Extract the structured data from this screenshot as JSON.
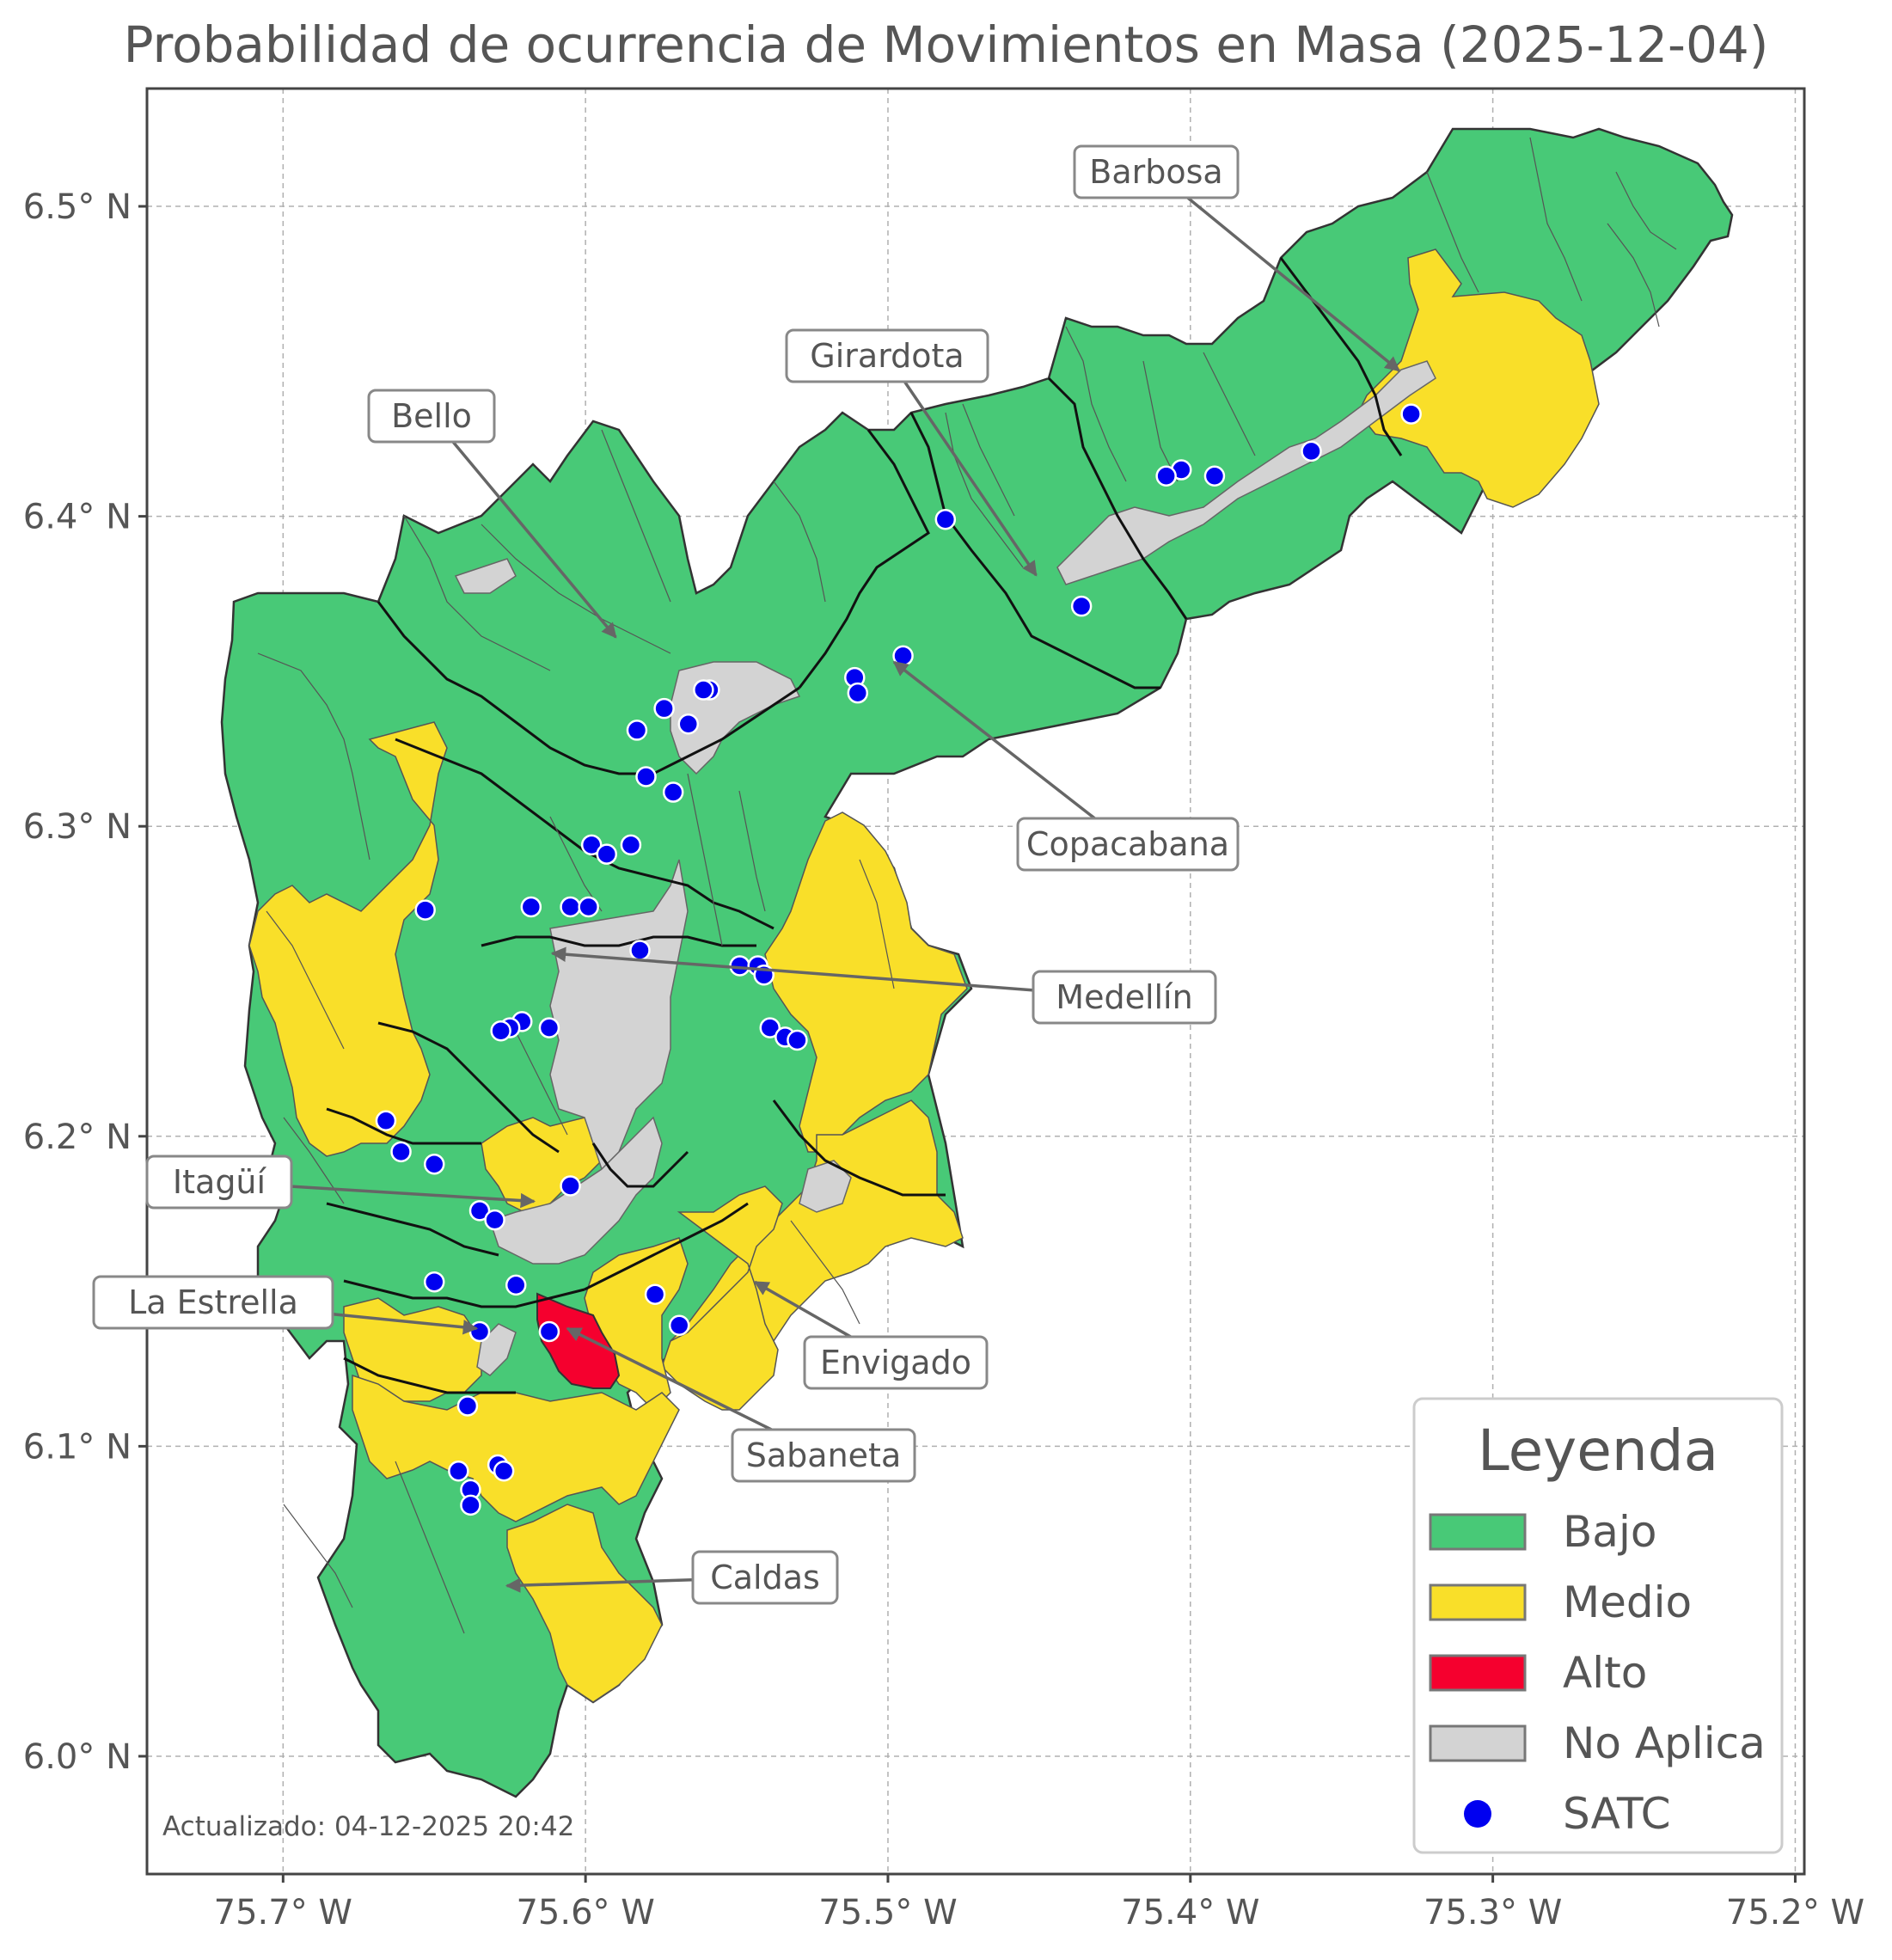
{
  "title": "Probabilidad de ocurrencia de Movimientos en Masa (2025-12-04)",
  "axes": {
    "x_ticks": [
      "75.7° W",
      "75.6° W",
      "75.5° W",
      "75.4° W",
      "75.3° W",
      "75.2° W"
    ],
    "y_ticks": [
      "6.5° N",
      "6.4° N",
      "6.3° N",
      "6.2° N",
      "6.1° N",
      "6.0° N"
    ],
    "x_values": [
      -75.7,
      -75.6,
      -75.5,
      -75.4,
      -75.3,
      -75.2
    ],
    "y_values": [
      6.5,
      6.4,
      6.3,
      6.2,
      6.1,
      6.0
    ],
    "lon_range": [
      -75.745,
      -75.197
    ],
    "lat_range": [
      5.962,
      6.538
    ],
    "grid": true
  },
  "municipalities": [
    {
      "name": "Barbosa",
      "lon": -75.331,
      "lat": 6.447
    },
    {
      "name": "Girardota",
      "lon": -75.451,
      "lat": 6.381
    },
    {
      "name": "Bello",
      "lon": -75.59,
      "lat": 6.361
    },
    {
      "name": "Copacabana",
      "lon": -75.498,
      "lat": 6.353
    },
    {
      "name": "Medellín",
      "lon": -75.611,
      "lat": 6.259
    },
    {
      "name": "Itagüí",
      "lon": -75.617,
      "lat": 6.179
    },
    {
      "name": "La Estrella",
      "lon": -75.636,
      "lat": 6.138
    },
    {
      "name": "Envigado",
      "lon": -75.544,
      "lat": 6.153
    },
    {
      "name": "Sabaneta",
      "lon": -75.606,
      "lat": 6.138
    },
    {
      "name": "Caldas",
      "lon": -75.626,
      "lat": 6.055
    }
  ],
  "legend": {
    "title": "Leyenda",
    "items": [
      {
        "label": "Bajo",
        "color": "#48c977"
      },
      {
        "label": "Medio",
        "color": "#f9df29"
      },
      {
        "label": "Alto",
        "color": "#f5002e"
      },
      {
        "label": "No Aplica",
        "color": "#d3d3d3"
      },
      {
        "label": "SATC",
        "color": "#0000f0",
        "marker": "circle"
      }
    ]
  },
  "satc_stations": [
    [
      -75.327,
      6.433
    ],
    [
      -75.36,
      6.421
    ],
    [
      -75.392,
      6.413
    ],
    [
      -75.403,
      6.415
    ],
    [
      -75.408,
      6.413
    ],
    [
      -75.481,
      6.399
    ],
    [
      -75.436,
      6.371
    ],
    [
      -75.495,
      6.355
    ],
    [
      -75.511,
      6.348
    ],
    [
      -75.51,
      6.343
    ],
    [
      -75.559,
      6.344
    ],
    [
      -75.561,
      6.344
    ],
    [
      -75.566,
      6.333
    ],
    [
      -75.574,
      6.338
    ],
    [
      -75.583,
      6.331
    ],
    [
      -75.58,
      6.316
    ],
    [
      -75.571,
      6.311
    ],
    [
      -75.598,
      6.294
    ],
    [
      -75.593,
      6.291
    ],
    [
      -75.585,
      6.294
    ],
    [
      -75.653,
      6.273
    ],
    [
      -75.618,
      6.274
    ],
    [
      -75.605,
      6.274
    ],
    [
      -75.599,
      6.274
    ],
    [
      -75.582,
      6.26
    ],
    [
      -75.549,
      6.255
    ],
    [
      -75.543,
      6.255
    ],
    [
      -75.541,
      6.252
    ],
    [
      -75.621,
      6.237
    ],
    [
      -75.625,
      6.235
    ],
    [
      -75.628,
      6.234
    ],
    [
      -75.612,
      6.235
    ],
    [
      -75.539,
      6.235
    ],
    [
      -75.534,
      6.232
    ],
    [
      -75.53,
      6.231
    ],
    [
      -75.666,
      6.205
    ],
    [
      -75.661,
      6.195
    ],
    [
      -75.65,
      6.191
    ],
    [
      -75.605,
      6.184
    ],
    [
      -75.635,
      6.176
    ],
    [
      -75.63,
      6.173
    ],
    [
      -75.65,
      6.153
    ],
    [
      -75.623,
      6.152
    ],
    [
      -75.577,
      6.149
    ],
    [
      -75.569,
      6.139
    ],
    [
      -75.635,
      6.137
    ],
    [
      -75.612,
      6.137
    ],
    [
      -75.639,
      6.113
    ],
    [
      -75.642,
      6.092
    ],
    [
      -75.629,
      6.094
    ],
    [
      -75.627,
      6.092
    ],
    [
      -75.638,
      6.086
    ],
    [
      -75.638,
      6.081
    ]
  ],
  "alert_levels_present": [
    "Bajo",
    "Medio",
    "Alto",
    "No Aplica"
  ],
  "footer": "Actualizado: 04-12-2025 20:42"
}
